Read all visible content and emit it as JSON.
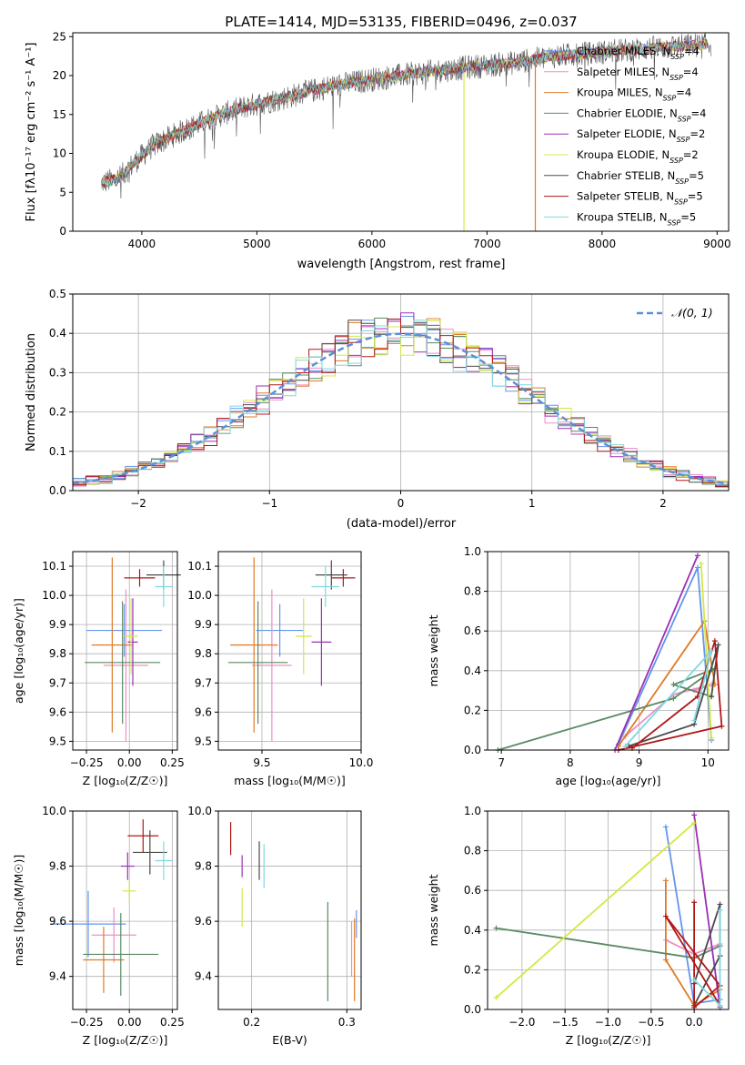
{
  "chart_data": [
    {
      "id": "spectrum",
      "type": "line",
      "title": "PLATE=1414, MJD=53135, FIBERID=0496, z=0.037",
      "xlabel": "wavelength [Angstrom, rest frame]",
      "ylabel": "Flux [fλ10⁻¹⁷ erg cm⁻² s⁻¹ A⁻¹]",
      "xlim": [
        3400,
        9100
      ],
      "ylim": [
        0,
        25.5
      ],
      "xticks": [
        4000,
        5000,
        6000,
        7000,
        8000,
        9000
      ],
      "yticks": [
        0,
        5,
        10,
        15,
        20,
        25
      ],
      "grid": false,
      "legend_position": "top-right",
      "continuum_points": [
        [
          3650,
          6.2
        ],
        [
          3800,
          6.8
        ],
        [
          3950,
          9.0
        ],
        [
          4100,
          11.0
        ],
        [
          4300,
          12.5
        ],
        [
          4600,
          14.5
        ],
        [
          4900,
          16.0
        ],
        [
          5200,
          17.0
        ],
        [
          5600,
          18.5
        ],
        [
          6000,
          19.5
        ],
        [
          6400,
          20.3
        ],
        [
          6800,
          21.0
        ],
        [
          7200,
          21.6
        ],
        [
          7600,
          22.5
        ],
        [
          8000,
          23.0
        ],
        [
          8500,
          23.6
        ],
        [
          8900,
          24.0
        ]
      ],
      "series": [
        {
          "name": "Chabrier MILES, N_SSP=4",
          "color": "#6495ED"
        },
        {
          "name": "Salpeter MILES, N_SSP=4",
          "color": "#E990C8"
        },
        {
          "name": "Kroupa MILES, N_SSP=4",
          "color": "#E07B27"
        },
        {
          "name": "Chabrier ELODIE, N_SSP=4",
          "color": "#5B8A63"
        },
        {
          "name": "Salpeter ELODIE, N_SSP=2",
          "color": "#9B30B5"
        },
        {
          "name": "Kroupa ELODIE, N_SSP=2",
          "color": "#D4E845"
        },
        {
          "name": "Chabrier STELIB, N_SSP=5",
          "color": "#4A4A4A"
        },
        {
          "name": "Salpeter STELIB, N_SSP=5",
          "color": "#B01818"
        },
        {
          "name": "Kroupa STELIB, N_SSP=5",
          "color": "#7FD8E0"
        }
      ],
      "legend_labels": [
        [
          "Chabrier MILES, N",
          "SSP",
          "=4"
        ],
        [
          "Salpeter MILES, N",
          "SSP",
          "=4"
        ],
        [
          "Kroupa MILES, N",
          "SSP",
          "=4"
        ],
        [
          "Chabrier ELODIE, N",
          "SSP",
          "=4"
        ],
        [
          "Salpeter ELODIE, N",
          "SSP",
          "=2"
        ],
        [
          "Kroupa ELODIE, N",
          "SSP",
          "=2"
        ],
        [
          "Chabrier STELIB, N",
          "SSP",
          "=5"
        ],
        [
          "Salpeter STELIB, N",
          "SSP",
          "=5"
        ],
        [
          "Kroupa STELIB, N",
          "SSP",
          "=5"
        ]
      ]
    },
    {
      "id": "residual-histogram",
      "type": "bar",
      "xlabel": "(data-model)/error",
      "ylabel": "Normed distribution",
      "xlim": [
        -2.5,
        2.5
      ],
      "ylim": [
        0,
        0.5
      ],
      "xticks": [
        -2,
        -1,
        0,
        1,
        2
      ],
      "yticks": [
        0.0,
        0.1,
        0.2,
        0.3,
        0.4,
        0.5
      ],
      "grid": true,
      "legend": [
        "𝒩(0, 1)"
      ],
      "legend_position": "top-right",
      "reference_curve": {
        "name": "N(0,1)",
        "color": "#5B8FD9",
        "style": "dashed"
      },
      "bin_width": 0.1,
      "bin_start": -2.5
    },
    {
      "id": "age-vs-Z",
      "type": "scatter",
      "xlabel": "Z [log₁₀(Z/Z☉)]",
      "ylabel": "age  [log₁₀(age/yr)]",
      "xlim": [
        -0.33,
        0.28
      ],
      "ylim": [
        9.47,
        10.15
      ],
      "xticks": [
        -0.25,
        0.0,
        0.25
      ],
      "yticks": [
        9.5,
        9.6,
        9.7,
        9.8,
        9.9,
        10.0,
        10.1
      ],
      "grid": true,
      "points": [
        {
          "color": "#6495ED",
          "x": -0.03,
          "xerr": 0.22,
          "y": 9.88,
          "yerr": 0.09
        },
        {
          "color": "#E990C8",
          "x": -0.02,
          "xerr": 0.13,
          "y": 9.76,
          "yerr": 0.26
        },
        {
          "color": "#E07B27",
          "x": -0.1,
          "xerr": 0.12,
          "y": 9.83,
          "yerr": 0.3
        },
        {
          "color": "#5B8A63",
          "x": -0.04,
          "xerr": 0.22,
          "y": 9.77,
          "yerr": 0.21
        },
        {
          "color": "#9B30B5",
          "x": 0.02,
          "xerr": 0.03,
          "y": 9.84,
          "yerr": 0.15
        },
        {
          "color": "#D4E845",
          "x": 0.01,
          "xerr": 0.04,
          "y": 9.86,
          "yerr": 0.13
        },
        {
          "color": "#4A4A4A",
          "x": 0.2,
          "xerr": 0.1,
          "y": 10.07,
          "yerr": 0.05
        },
        {
          "color": "#B01818",
          "x": 0.06,
          "xerr": 0.09,
          "y": 10.06,
          "yerr": 0.03
        },
        {
          "color": "#7FD8E0",
          "x": 0.2,
          "xerr": 0.05,
          "y": 10.03,
          "yerr": 0.07
        }
      ]
    },
    {
      "id": "age-vs-mass",
      "type": "scatter",
      "xlabel": "mass [log₁₀(M/M☉)]",
      "xlim": [
        9.28,
        10.0
      ],
      "ylim": [
        9.47,
        10.15
      ],
      "xticks": [
        9.5,
        10.0
      ],
      "yticks": [
        9.5,
        9.6,
        9.7,
        9.8,
        9.9,
        10.0,
        10.1
      ],
      "grid": true,
      "points": [
        {
          "color": "#6495ED",
          "x": 9.59,
          "xerr": 0.12,
          "y": 9.88,
          "yerr": 0.09
        },
        {
          "color": "#E990C8",
          "x": 9.55,
          "xerr": 0.1,
          "y": 9.76,
          "yerr": 0.26
        },
        {
          "color": "#E07B27",
          "x": 9.46,
          "xerr": 0.12,
          "y": 9.83,
          "yerr": 0.3
        },
        {
          "color": "#5B8A63",
          "x": 9.48,
          "xerr": 0.15,
          "y": 9.77,
          "yerr": 0.21
        },
        {
          "color": "#9B30B5",
          "x": 9.8,
          "xerr": 0.05,
          "y": 9.84,
          "yerr": 0.15
        },
        {
          "color": "#D4E845",
          "x": 9.71,
          "xerr": 0.04,
          "y": 9.86,
          "yerr": 0.13
        },
        {
          "color": "#4A4A4A",
          "x": 9.85,
          "xerr": 0.08,
          "y": 10.07,
          "yerr": 0.05
        },
        {
          "color": "#B01818",
          "x": 9.91,
          "xerr": 0.06,
          "y": 10.06,
          "yerr": 0.03
        },
        {
          "color": "#7FD8E0",
          "x": 9.82,
          "xerr": 0.07,
          "y": 10.03,
          "yerr": 0.07
        }
      ]
    },
    {
      "id": "mass-weight-vs-age",
      "type": "line",
      "xlabel": "age  [log₁₀(age/yr)]",
      "ylabel": "mass weight",
      "xlim": [
        6.8,
        10.3
      ],
      "ylim": [
        0,
        1.0
      ],
      "xticks": [
        7,
        8,
        9,
        10
      ],
      "yticks": [
        0.0,
        0.2,
        0.4,
        0.6,
        0.8,
        1.0
      ],
      "grid": true,
      "series": [
        {
          "color": "#6495ED",
          "points": [
            [
              8.7,
              0.03
            ],
            [
              9.85,
              0.92
            ],
            [
              10.05,
              0.05
            ]
          ]
        },
        {
          "color": "#E990C8",
          "points": [
            [
              8.8,
              0.07
            ],
            [
              9.5,
              0.28
            ],
            [
              10.05,
              0.33
            ],
            [
              9.8,
              0.3
            ]
          ]
        },
        {
          "color": "#E07B27",
          "points": [
            [
              8.7,
              0.02
            ],
            [
              9.95,
              0.65
            ],
            [
              10.1,
              0.33
            ]
          ]
        },
        {
          "color": "#5B8A63",
          "points": [
            [
              6.95,
              0.0
            ],
            [
              9.5,
              0.26
            ],
            [
              10.1,
              0.41
            ],
            [
              9.5,
              0.33
            ],
            [
              10.05,
              0.27
            ]
          ]
        },
        {
          "color": "#9B30B5",
          "points": [
            [
              8.65,
              0.0
            ],
            [
              9.85,
              0.98
            ]
          ]
        },
        {
          "color": "#D4E845",
          "points": [
            [
              9.9,
              0.94
            ],
            [
              10.05,
              0.06
            ]
          ]
        },
        {
          "color": "#4A4A4A",
          "points": [
            [
              8.85,
              0.02
            ],
            [
              9.8,
              0.13
            ],
            [
              10.15,
              0.53
            ],
            [
              10.05,
              0.27
            ]
          ]
        },
        {
          "color": "#B01818",
          "points": [
            [
              8.9,
              0.01
            ],
            [
              9.85,
              0.27
            ],
            [
              10.1,
              0.55
            ],
            [
              10.2,
              0.12
            ],
            [
              8.7,
              0.0
            ]
          ]
        },
        {
          "color": "#7FD8E0",
          "points": [
            [
              8.8,
              0.02
            ],
            [
              10.05,
              0.5
            ],
            [
              9.8,
              0.15
            ]
          ]
        }
      ]
    },
    {
      "id": "mass-vs-Z",
      "type": "scatter",
      "xlabel": "Z [log₁₀(Z/Z☉)]",
      "ylabel": "mass [log₁₀(M/M☉)]",
      "xlim": [
        -0.33,
        0.28
      ],
      "ylim": [
        9.28,
        10.0
      ],
      "xticks": [
        -0.25,
        0.0,
        0.25
      ],
      "yticks": [
        9.4,
        9.6,
        9.8,
        10.0
      ],
      "grid": true,
      "points": [
        {
          "color": "#6495ED",
          "x": -0.24,
          "xerr": 0.22,
          "y": 9.59,
          "yerr": 0.12
        },
        {
          "color": "#E990C8",
          "x": -0.09,
          "xerr": 0.13,
          "y": 9.55,
          "yerr": 0.1
        },
        {
          "color": "#E07B27",
          "x": -0.15,
          "xerr": 0.12,
          "y": 9.46,
          "yerr": 0.12
        },
        {
          "color": "#5B8A63",
          "x": -0.05,
          "xerr": 0.22,
          "y": 9.48,
          "yerr": 0.15
        },
        {
          "color": "#9B30B5",
          "x": -0.01,
          "xerr": 0.04,
          "y": 9.8,
          "yerr": 0.05
        },
        {
          "color": "#D4E845",
          "x": 0.0,
          "xerr": 0.04,
          "y": 9.71,
          "yerr": 0.04
        },
        {
          "color": "#4A4A4A",
          "x": 0.12,
          "xerr": 0.1,
          "y": 9.85,
          "yerr": 0.08
        },
        {
          "color": "#B01818",
          "x": 0.08,
          "xerr": 0.09,
          "y": 9.91,
          "yerr": 0.06
        },
        {
          "color": "#7FD8E0",
          "x": 0.2,
          "xerr": 0.05,
          "y": 9.82,
          "yerr": 0.07
        }
      ]
    },
    {
      "id": "mass-vs-ebv",
      "type": "scatter",
      "xlabel": "E(B-V)",
      "xlim": [
        0.165,
        0.315
      ],
      "ylim": [
        9.28,
        10.0
      ],
      "xticks": [
        0.2,
        0.3
      ],
      "yticks": [
        9.4,
        9.6,
        9.8,
        10.0
      ],
      "grid": true,
      "points": [
        {
          "color": "#6495ED",
          "x": 0.31,
          "xerr": 0.0,
          "y": 9.59,
          "yerr": 0.05
        },
        {
          "color": "#E990C8",
          "x": 0.305,
          "xerr": 0.0,
          "y": 9.5,
          "yerr": 0.1
        },
        {
          "color": "#E07B27",
          "x": 0.308,
          "xerr": 0.0,
          "y": 9.46,
          "yerr": 0.15
        },
        {
          "color": "#5B8A63",
          "x": 0.28,
          "xerr": 0.0,
          "y": 9.49,
          "yerr": 0.18
        },
        {
          "color": "#9B30B5",
          "x": 0.19,
          "xerr": 0.0,
          "y": 9.8,
          "yerr": 0.04
        },
        {
          "color": "#D4E845",
          "x": 0.19,
          "xerr": 0.0,
          "y": 9.65,
          "yerr": 0.07
        },
        {
          "color": "#4A4A4A",
          "x": 0.208,
          "xerr": 0.0,
          "y": 9.82,
          "yerr": 0.07
        },
        {
          "color": "#B01818",
          "x": 0.178,
          "xerr": 0.0,
          "y": 9.9,
          "yerr": 0.06
        },
        {
          "color": "#7FD8E0",
          "x": 0.213,
          "xerr": 0.0,
          "y": 9.8,
          "yerr": 0.08
        }
      ]
    },
    {
      "id": "mass-weight-vs-Z",
      "type": "line",
      "xlabel": "Z [log₁₀(Z/Z☉)]",
      "ylabel": "mass weight",
      "xlim": [
        -2.4,
        0.4
      ],
      "ylim": [
        0,
        1.0
      ],
      "xticks": [
        -2.0,
        -1.5,
        -1.0,
        -0.5,
        0.0
      ],
      "yticks": [
        0.0,
        0.2,
        0.4,
        0.6,
        0.8,
        1.0
      ],
      "grid": true,
      "series": [
        {
          "color": "#6495ED",
          "points": [
            [
              -0.33,
              0.92
            ],
            [
              0.0,
              0.03
            ],
            [
              0.3,
              0.05
            ]
          ]
        },
        {
          "color": "#E990C8",
          "points": [
            [
              -0.33,
              0.35
            ],
            [
              0.0,
              0.28
            ],
            [
              0.3,
              0.33
            ]
          ]
        },
        {
          "color": "#E07B27",
          "points": [
            [
              -0.33,
              0.65
            ],
            [
              -0.33,
              0.25
            ],
            [
              0.0,
              0.02
            ],
            [
              0.3,
              0.1
            ]
          ]
        },
        {
          "color": "#5B8A63",
          "points": [
            [
              -2.3,
              0.41
            ],
            [
              0.0,
              0.26
            ],
            [
              0.3,
              0.32
            ]
          ]
        },
        {
          "color": "#9B30B5",
          "points": [
            [
              0.0,
              0.98
            ],
            [
              0.3,
              0.01
            ]
          ]
        },
        {
          "color": "#D4E845",
          "points": [
            [
              -2.3,
              0.06
            ],
            [
              0.0,
              0.94
            ]
          ]
        },
        {
          "color": "#4A4A4A",
          "points": [
            [
              0.0,
              0.13
            ],
            [
              0.3,
              0.53
            ],
            [
              0.3,
              0.27
            ],
            [
              0.0,
              0.02
            ]
          ]
        },
        {
          "color": "#B01818",
          "points": [
            [
              0.0,
              0.54
            ],
            [
              0.0,
              0.01
            ],
            [
              0.3,
              0.12
            ],
            [
              -0.33,
              0.47
            ],
            [
              0.3,
              0.02
            ]
          ]
        },
        {
          "color": "#7FD8E0",
          "points": [
            [
              0.3,
              0.5
            ],
            [
              0.3,
              0.02
            ],
            [
              0.0,
              0.15
            ]
          ]
        }
      ]
    }
  ]
}
